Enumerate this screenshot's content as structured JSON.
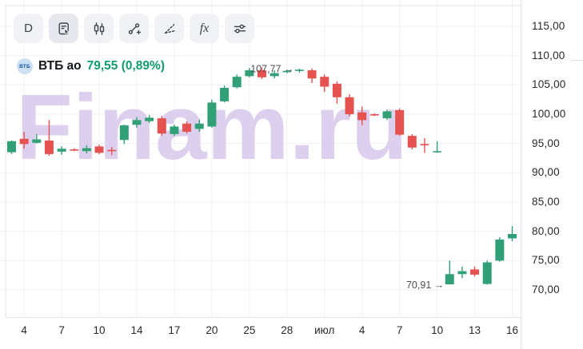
{
  "toolbar": {
    "buttons": [
      {
        "label": "D"
      },
      {
        "label": ""
      },
      {
        "label": ""
      },
      {
        "label": ""
      },
      {
        "label": ""
      },
      {
        "label": "fx"
      },
      {
        "label": ""
      }
    ]
  },
  "ticker": {
    "logo_text": "ВТБ",
    "name": "ВТБ ао",
    "quote": "79,55 (0,89%)",
    "quote_color": "#0f9c6c"
  },
  "watermark": {
    "text": "Finam.ru",
    "color": "#dcd0ee"
  },
  "chart_data": {
    "type": "candlestick",
    "title": "ВТБ ао",
    "last_price": 79.55,
    "change_percent": 0.89,
    "colors": {
      "up": "#31a077",
      "down": "#e5524f",
      "grid": "#f1f1f4",
      "border": "#e4e5e8",
      "annotation": "#4b4f55"
    },
    "y_axis": {
      "min": 70,
      "max": 115,
      "step": 5,
      "ticks": [
        {
          "label": "115,00",
          "value": 115
        },
        {
          "label": "110,00",
          "value": 110
        },
        {
          "label": "105,00",
          "value": 105
        },
        {
          "label": "100,00",
          "value": 100
        },
        {
          "label": "95,00",
          "value": 95
        },
        {
          "label": "90,00",
          "value": 90
        },
        {
          "label": "85,00",
          "value": 85
        },
        {
          "label": "80,00",
          "value": 80
        },
        {
          "label": "75,00",
          "value": 75
        },
        {
          "label": "70,00",
          "value": 70
        }
      ]
    },
    "x_axis": {
      "ticks": [
        {
          "label": "4",
          "index": 1
        },
        {
          "label": "7",
          "index": 4
        },
        {
          "label": "10",
          "index": 7
        },
        {
          "label": "14",
          "index": 10
        },
        {
          "label": "17",
          "index": 13
        },
        {
          "label": "20",
          "index": 16
        },
        {
          "label": "25",
          "index": 19
        },
        {
          "label": "28",
          "index": 22
        },
        {
          "label": "июл",
          "index": 25
        },
        {
          "label": "4",
          "index": 28
        },
        {
          "label": "7",
          "index": 31
        },
        {
          "label": "10",
          "index": 34
        },
        {
          "label": "13",
          "index": 37
        },
        {
          "label": "16",
          "index": 40
        }
      ]
    },
    "candles_ohlc": [
      [
        93.5,
        95.5,
        93.2,
        95.4
      ],
      [
        95.8,
        97.0,
        94.1,
        94.9
      ],
      [
        95.1,
        96.6,
        95.0,
        95.7
      ],
      [
        95.5,
        99.0,
        92.9,
        93.2
      ],
      [
        93.6,
        94.5,
        93.1,
        94.1
      ],
      [
        94.0,
        94.2,
        93.7,
        93.8
      ],
      [
        93.7,
        94.7,
        93.3,
        94.2
      ],
      [
        94.5,
        94.8,
        93.2,
        93.4
      ],
      [
        93.9,
        94.4,
        93.0,
        93.7
      ],
      [
        95.6,
        98.2,
        94.9,
        98.1
      ],
      [
        98.2,
        99.5,
        97.7,
        99.0
      ],
      [
        98.8,
        99.9,
        98.5,
        99.4
      ],
      [
        99.3,
        99.7,
        96.3,
        96.7
      ],
      [
        96.6,
        98.2,
        96.3,
        97.9
      ],
      [
        98.4,
        98.8,
        96.7,
        97.0
      ],
      [
        97.5,
        99.1,
        97.0,
        98.4
      ],
      [
        97.9,
        102.5,
        97.7,
        102.0
      ],
      [
        102.2,
        104.9,
        102.0,
        104.5
      ],
      [
        104.6,
        106.8,
        104.4,
        106.4
      ],
      [
        106.5,
        107.9,
        106.3,
        107.5
      ],
      [
        107.5,
        108.0,
        106.0,
        106.3
      ],
      [
        106.5,
        107.5,
        106.1,
        107.0
      ],
      [
        107.2,
        107.6,
        107.0,
        107.4
      ],
      [
        107.4,
        107.77,
        107.1,
        107.6
      ],
      [
        107.5,
        107.8,
        105.3,
        106.1
      ],
      [
        106.4,
        106.8,
        103.8,
        104.7
      ],
      [
        105.2,
        105.6,
        101.8,
        102.9
      ],
      [
        102.9,
        103.4,
        99.6,
        100.0
      ],
      [
        100.3,
        101.3,
        98.1,
        99.0
      ],
      [
        100.0,
        100.2,
        99.7,
        99.8
      ],
      [
        99.3,
        100.8,
        99.0,
        100.5
      ],
      [
        100.7,
        101.0,
        96.3,
        96.5
      ],
      [
        96.3,
        96.6,
        94.0,
        94.3
      ],
      [
        94.9,
        95.9,
        93.4,
        94.7
      ],
      [
        93.5,
        95.4,
        93.4,
        93.7
      ],
      [
        70.95,
        75.0,
        70.91,
        72.7
      ],
      [
        72.7,
        74.0,
        72.0,
        73.2
      ],
      [
        73.5,
        74.0,
        72.3,
        72.6
      ],
      [
        71.0,
        75.0,
        70.9,
        74.7
      ],
      [
        75.0,
        79.0,
        74.8,
        78.6
      ],
      [
        78.8,
        80.9,
        78.3,
        79.55
      ]
    ],
    "annotations": [
      {
        "text": "107,77",
        "value": 107.77,
        "candle_index": 23
      },
      {
        "text": "70,91",
        "value": 70.91,
        "candle_index": 35
      }
    ]
  }
}
